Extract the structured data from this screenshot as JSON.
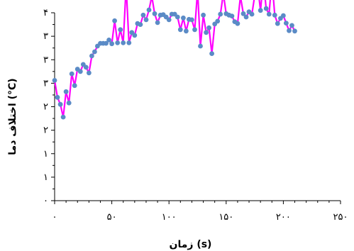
{
  "chart_data": {
    "type": "line",
    "xlabel": "زمان (s)",
    "ylabel": "اختلاف دما (°C)",
    "xlim": [
      0,
      250
    ],
    "ylim": [
      0,
      4
    ],
    "x_tick_labels": [
      "۰",
      "۵۰",
      "۱۰۰",
      "۱۵۰",
      "۲۰۰",
      "۲۵۰"
    ],
    "y_tick_labels": [
      "۰",
      "۱",
      "۱",
      "۲",
      "۲",
      "۳",
      "۳",
      "۳",
      "۴"
    ],
    "grid": false,
    "legend": "none",
    "line_color": "#ff00ff",
    "marker_color": "#5b8bc6",
    "series": [
      {
        "x": [
          0,
          2.5,
          5,
          7.5,
          10,
          12.5,
          15,
          17.5,
          20,
          22.5,
          25,
          27.5,
          30,
          32.5,
          35,
          37.5,
          40,
          42.5,
          45,
          47.5,
          50,
          52.5,
          55,
          57.5,
          60,
          62.5,
          65,
          67.5,
          70,
          72.5,
          75,
          77.5,
          80,
          82.5,
          85,
          87.5,
          90,
          92.5,
          95,
          97.5,
          100,
          102.5,
          105,
          107.5,
          110,
          112.5,
          115,
          117.5,
          120,
          122.5,
          125,
          127.5,
          130,
          132.5,
          135,
          137.5,
          140,
          142.5,
          145,
          147.5,
          150,
          152.5,
          155,
          157.5,
          160,
          162.5,
          165,
          167.5,
          170,
          172.5,
          175,
          177.5,
          180,
          182.5,
          185,
          187.5,
          190,
          192.5,
          195,
          197.5,
          200,
          202.5,
          205,
          207.5,
          210
        ],
        "y": [
          2.56,
          2.2,
          2.05,
          1.78,
          2.32,
          2.08,
          2.7,
          2.45,
          2.8,
          2.75,
          2.9,
          2.84,
          2.72,
          3.08,
          3.17,
          3.29,
          3.35,
          3.35,
          3.35,
          3.42,
          3.34,
          3.83,
          3.36,
          3.64,
          3.36,
          4.57,
          3.36,
          3.58,
          3.52,
          3.77,
          3.75,
          3.95,
          3.85,
          4.06,
          4.35,
          3.98,
          3.79,
          3.95,
          3.96,
          3.91,
          3.85,
          3.97,
          3.97,
          3.91,
          3.64,
          3.89,
          3.61,
          3.86,
          3.85,
          3.64,
          4.48,
          3.29,
          3.95,
          3.58,
          3.68,
          3.13,
          3.76,
          3.82,
          3.97,
          4.41,
          3.98,
          3.95,
          3.93,
          3.81,
          3.77,
          4.35,
          3.98,
          3.91,
          4.02,
          3.97,
          4.37,
          4.58,
          4.05,
          4.68,
          4.09,
          3.97,
          4.71,
          3.95,
          3.77,
          3.88,
          3.94,
          3.78,
          3.62,
          3.73,
          3.61
        ]
      }
    ]
  }
}
